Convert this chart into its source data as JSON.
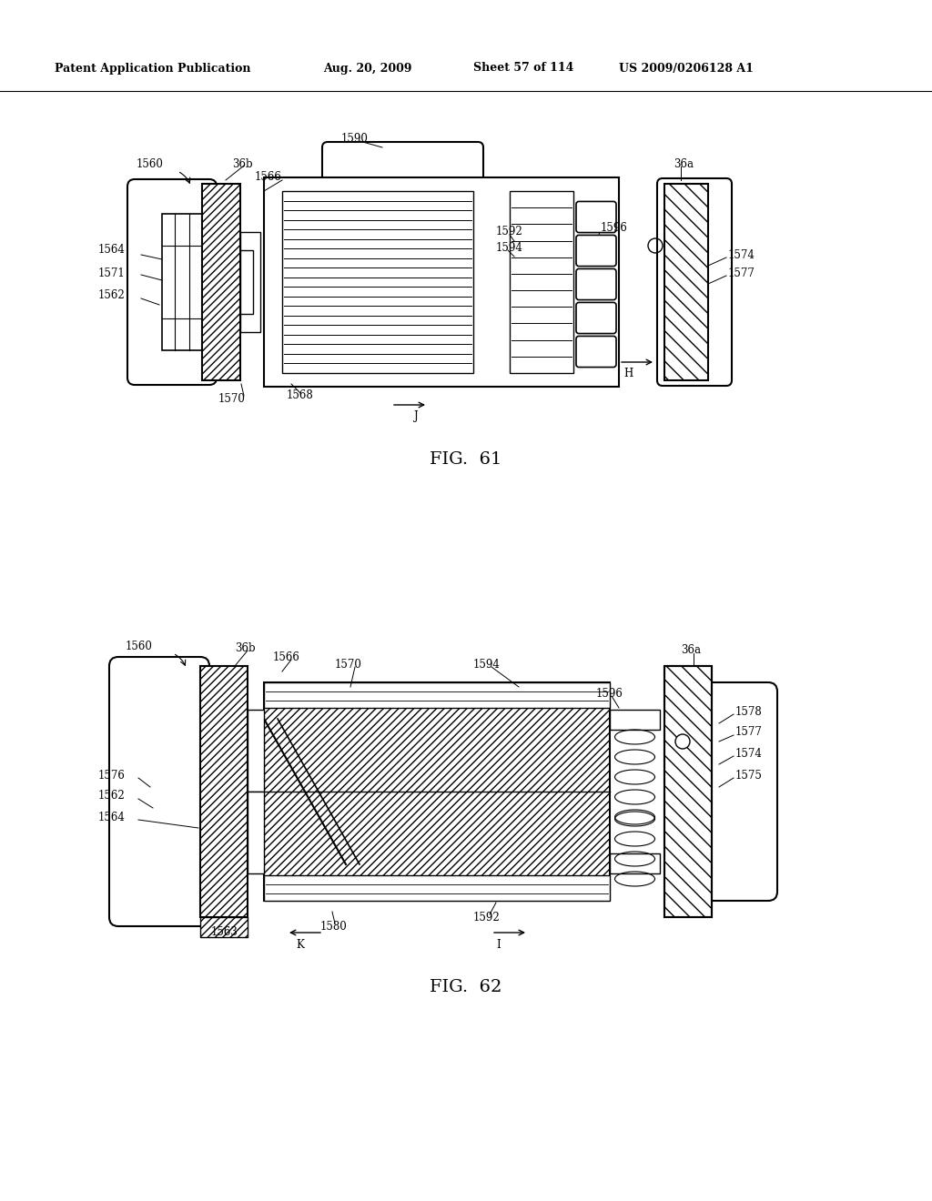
{
  "header_text": "Patent Application Publication",
  "header_date": "Aug. 20, 2009",
  "header_sheet": "Sheet 57 of 114",
  "header_patent": "US 2009/0206128 A1",
  "fig61_label": "FIG.  61",
  "fig62_label": "FIG.  62",
  "bg_color": "#ffffff"
}
